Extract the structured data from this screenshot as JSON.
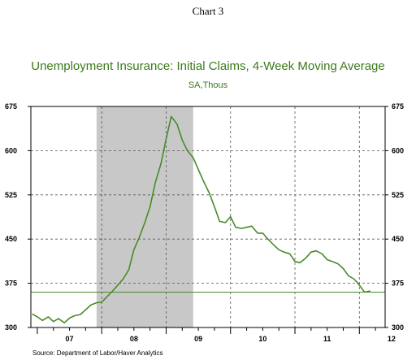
{
  "header": {
    "chart_number": "Chart 3",
    "title": "Unemployment Insurance: Initial Claims, 4-Week Moving Average",
    "subtitle": "SA,Thous"
  },
  "source": "Source:  Department of Labor/Haver Analytics",
  "colors": {
    "title": "#3a7a1a",
    "line": "#4a8a2a",
    "recession": "#c8c8c8",
    "reference": "#4a8a2a"
  },
  "chart_data": {
    "type": "line",
    "title": "Unemployment Insurance: Initial Claims, 4-Week Moving Average",
    "subtitle": "SA,Thous",
    "xlabel": "",
    "ylabel": "",
    "xlim": [
      2006.9,
      2012.4
    ],
    "ylim": [
      300,
      675
    ],
    "yticks": [
      300,
      375,
      450,
      525,
      600,
      675
    ],
    "xtick_labels": [
      {
        "label": "07",
        "x": 2007.5
      },
      {
        "label": "08",
        "x": 2008.5
      },
      {
        "label": "09",
        "x": 2009.5
      },
      {
        "label": "10",
        "x": 2010.5
      },
      {
        "label": "11",
        "x": 2011.5
      },
      {
        "label": "12",
        "x": 2012.5
      }
    ],
    "year_boundaries": [
      2008,
      2009,
      2010,
      2011,
      2012
    ],
    "grid": true,
    "legend": "none",
    "reference_line": 360,
    "recession": [
      2007.92,
      2009.42
    ],
    "series": [
      {
        "x": [
          2006.92,
          2007.0,
          2007.08,
          2007.17,
          2007.25,
          2007.33,
          2007.42,
          2007.5,
          2007.58,
          2007.67,
          2007.75,
          2007.83,
          2007.92,
          2008.0,
          2008.08,
          2008.17,
          2008.25,
          2008.33,
          2008.42,
          2008.5,
          2008.58,
          2008.67,
          2008.75,
          2008.83,
          2008.92,
          2009.0,
          2009.08,
          2009.17,
          2009.25,
          2009.33,
          2009.42,
          2009.5,
          2009.58,
          2009.67,
          2009.75,
          2009.83,
          2009.92,
          2010.0,
          2010.08,
          2010.17,
          2010.25,
          2010.33,
          2010.42,
          2010.5,
          2010.58,
          2010.67,
          2010.75,
          2010.83,
          2010.92,
          2011.0,
          2011.08,
          2011.17,
          2011.25,
          2011.33,
          2011.42,
          2011.5,
          2011.58,
          2011.67,
          2011.75,
          2011.83,
          2011.92,
          2012.0,
          2012.08,
          2012.17
        ],
        "values": [
          323,
          318,
          312,
          318,
          310,
          315,
          308,
          316,
          320,
          322,
          330,
          338,
          342,
          343,
          352,
          362,
          372,
          382,
          398,
          432,
          452,
          478,
          505,
          545,
          578,
          620,
          658,
          645,
          618,
          600,
          588,
          568,
          548,
          528,
          505,
          480,
          478,
          488,
          470,
          468,
          470,
          472,
          460,
          460,
          450,
          440,
          432,
          428,
          425,
          412,
          410,
          418,
          428,
          430,
          425,
          415,
          412,
          408,
          400,
          388,
          382,
          372,
          360,
          362
        ]
      }
    ]
  }
}
